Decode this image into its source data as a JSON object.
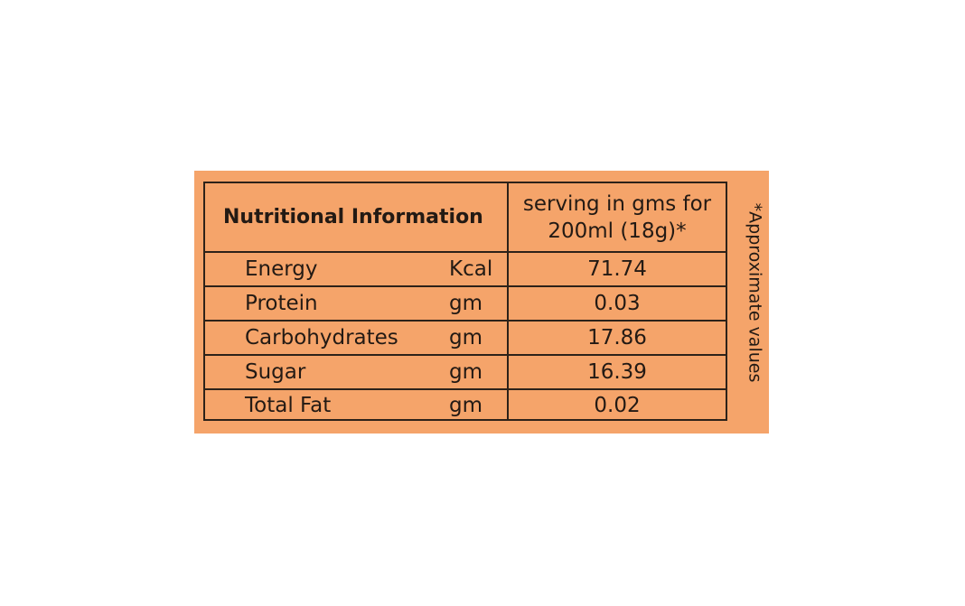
{
  "colors": {
    "panel_background": "#f5a46a",
    "border": "#2d2219",
    "text": "#231a14"
  },
  "table": {
    "header": {
      "title": "Nutritional Information",
      "serving_line1": "serving in gms for",
      "serving_line2": "200ml (18g)*"
    },
    "rows": [
      {
        "name": "Energy",
        "unit": "Kcal",
        "value": "71.74"
      },
      {
        "name": "Protein",
        "unit": "gm",
        "value": "0.03"
      },
      {
        "name": "Carbohydrates",
        "unit": "gm",
        "value": "17.86"
      },
      {
        "name": "Sugar",
        "unit": "gm",
        "value": "16.39"
      },
      {
        "name": "Total Fat",
        "unit": "gm",
        "value": "0.02"
      }
    ]
  },
  "footnote": "*Approximate values"
}
